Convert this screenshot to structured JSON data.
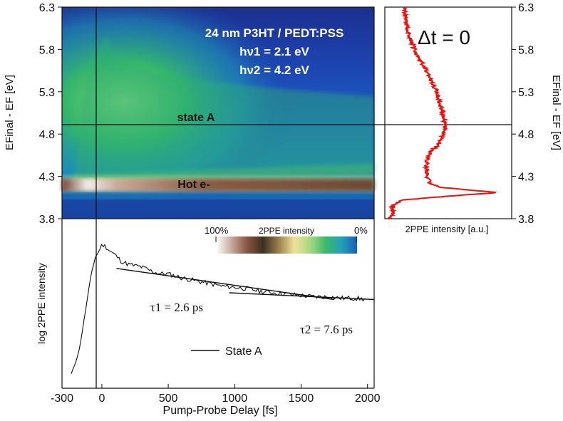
{
  "chart_data": [
    {
      "type": "heatmap",
      "title": "24 nm P3HT / PEDT:PSS",
      "subtitle_lines": [
        "hν1 = 2.1 eV",
        "hν2 = 4.2 eV"
      ],
      "ylabel": "EFinal - EF [eV]",
      "ylim": [
        3.8,
        6.3
      ],
      "xlim": [
        -300,
        2050
      ],
      "y_ticks": [
        "3.8",
        "4.3",
        "4.8",
        "5.3",
        "5.8",
        "6.3"
      ],
      "annotations": [
        {
          "text": "state A",
          "y": 4.92
        },
        {
          "text": "Hot e-",
          "y": 4.1
        }
      ],
      "colorbar": {
        "label": "2PPE intensity",
        "min_label": "0%",
        "max_label": "100%",
        "colors": [
          "#ffffff",
          "#c6a99c",
          "#8a5542",
          "#3c2f20",
          "#9a7f4b",
          "#efe29b",
          "#a7d97f",
          "#3db96c",
          "#22a0b8",
          "#1e5fb6"
        ]
      }
    },
    {
      "type": "line",
      "title": "Δt = 0",
      "xlabel": "2PPE intensity [a.u.]",
      "ylabel": "EFinal - EF [eV]",
      "ylim": [
        3.8,
        6.3
      ],
      "y_ticks": [
        "3.8",
        "4.3",
        "4.8",
        "5.3",
        "5.8",
        "6.3"
      ],
      "series_color": "#e8130f",
      "profile": [
        [
          3.8,
          0.02
        ],
        [
          3.88,
          0.05
        ],
        [
          3.95,
          0.04
        ],
        [
          4.02,
          0.12
        ],
        [
          4.07,
          0.55
        ],
        [
          4.11,
          0.95
        ],
        [
          4.13,
          0.78
        ],
        [
          4.17,
          0.45
        ],
        [
          4.22,
          0.36
        ],
        [
          4.3,
          0.34
        ],
        [
          4.4,
          0.33
        ],
        [
          4.5,
          0.34
        ],
        [
          4.6,
          0.38
        ],
        [
          4.7,
          0.45
        ],
        [
          4.8,
          0.47
        ],
        [
          4.9,
          0.49
        ],
        [
          5.0,
          0.48
        ],
        [
          5.1,
          0.46
        ],
        [
          5.2,
          0.44
        ],
        [
          5.3,
          0.42
        ],
        [
          5.4,
          0.38
        ],
        [
          5.5,
          0.35
        ],
        [
          5.6,
          0.31
        ],
        [
          5.7,
          0.27
        ],
        [
          5.8,
          0.23
        ],
        [
          5.9,
          0.2
        ],
        [
          6.0,
          0.18
        ],
        [
          6.1,
          0.16
        ],
        [
          6.3,
          0.15
        ]
      ],
      "marker_line_y": 4.92
    },
    {
      "type": "line",
      "xlabel": "Pump-Probe Delay [fs]",
      "ylabel": "log 2PPE intensity",
      "xlim": [
        -300,
        2050
      ],
      "x_ticks": [
        -300,
        0,
        500,
        1000,
        1500,
        2000
      ],
      "legend": "State A",
      "series": [
        {
          "name": "State A",
          "x": [
            -230,
            -200,
            -170,
            -140,
            -110,
            -80,
            -50,
            -20,
            0,
            30,
            60,
            100,
            150,
            200,
            250,
            300,
            350,
            400,
            450,
            500,
            600,
            700,
            800,
            900,
            1000,
            1100,
            1200,
            1300,
            1400,
            1500,
            1600,
            1700,
            1800,
            1900,
            2000
          ],
          "y": [
            0.0,
            0.08,
            0.18,
            0.36,
            0.55,
            0.74,
            0.86,
            0.91,
            0.96,
            0.94,
            0.91,
            0.88,
            0.83,
            0.81,
            0.8,
            0.79,
            0.77,
            0.75,
            0.74,
            0.74,
            0.71,
            0.69,
            0.67,
            0.65,
            0.64,
            0.63,
            0.61,
            0.6,
            0.59,
            0.58,
            0.57,
            0.57,
            0.56,
            0.56,
            0.55
          ]
        }
      ],
      "fits": [
        {
          "label": "τ1 = 2.6 ps",
          "x": [
            110,
            1750
          ],
          "y": [
            0.78,
            0.55
          ]
        },
        {
          "label": "τ2 = 7.6 ps",
          "x": [
            960,
            2050
          ],
          "y": [
            0.6,
            0.55
          ]
        }
      ],
      "marker_line_x": 0
    }
  ]
}
